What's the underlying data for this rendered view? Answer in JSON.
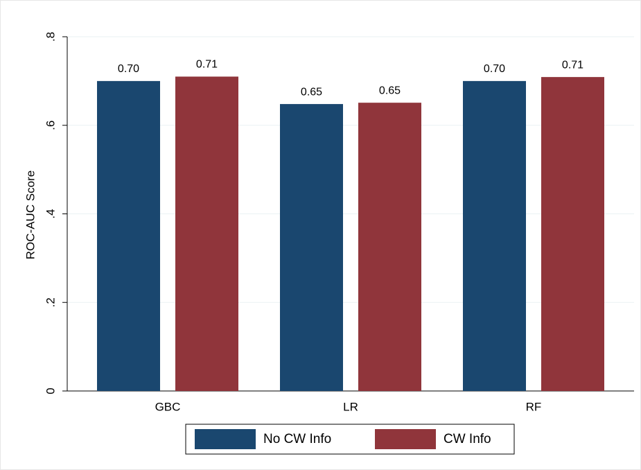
{
  "chart_data": {
    "type": "bar",
    "y_label": "ROC-AUC Score",
    "categories": [
      "GBC",
      "LR",
      "RF"
    ],
    "series": [
      {
        "name": "No CW Info",
        "color": "#1a476f",
        "values": [
          0.7,
          0.648,
          0.7
        ],
        "value_labels": [
          "0.70",
          "0.65",
          "0.70"
        ]
      },
      {
        "name": "CW Info",
        "color": "#90353b",
        "values": [
          0.71,
          0.651,
          0.709
        ],
        "value_labels": [
          "0.71",
          "0.65",
          "0.71"
        ]
      }
    ],
    "ylim": [
      0,
      0.8
    ],
    "yticks": [
      0,
      {
        "value": 0.2,
        "label": ".2"
      },
      {
        "value": 0.4,
        "label": ".4"
      },
      {
        "value": 0.6,
        "label": ".6"
      },
      {
        "value": 0.8,
        "label": ".8"
      }
    ],
    "grid": true
  }
}
